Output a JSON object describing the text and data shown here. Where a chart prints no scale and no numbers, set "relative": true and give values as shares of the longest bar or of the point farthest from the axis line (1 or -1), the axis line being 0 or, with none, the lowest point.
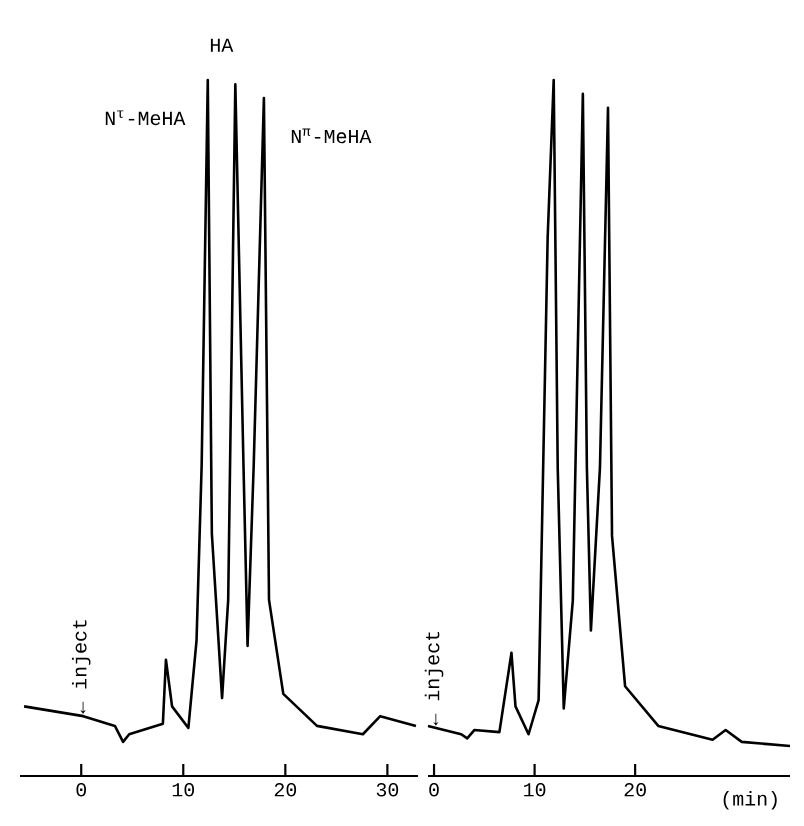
{
  "chart_data": [
    {
      "type": "line",
      "relative": true,
      "color": "#000000",
      "x": [
        -5.6,
        0.2,
        3.3,
        4.1,
        4.7,
        8.0,
        8.3,
        8.9,
        10.5,
        11.3,
        11.8,
        12.4,
        12.8,
        13.8,
        14.4,
        15.1,
        15.9,
        16.3,
        16.9,
        17.9,
        18.4,
        19.8,
        23.1,
        27.6,
        29.3,
        32.8
      ],
      "values": [
        0.1,
        0.086,
        0.072,
        0.049,
        0.06,
        0.075,
        0.167,
        0.1,
        0.069,
        0.195,
        0.446,
        1.0,
        0.348,
        0.112,
        0.253,
        0.994,
        0.446,
        0.187,
        0.446,
        0.974,
        0.253,
        0.118,
        0.072,
        0.06,
        0.086,
        0.072
      ],
      "xlim": [
        -6,
        33
      ],
      "xticks": [
        0,
        10,
        20,
        30
      ],
      "annotations": [
        {
          "text": "HA",
          "x": 15.1,
          "y": 0.994
        },
        {
          "text": "N$^{τ}$-MeHA",
          "x": 12.4,
          "y": 1.0
        },
        {
          "text": "N$^{π}$-MeHA",
          "x": 17.9,
          "y": 0.974
        },
        {
          "text": "← inject",
          "x": 0,
          "y": 0.086
        }
      ]
    },
    {
      "type": "line",
      "relative": true,
      "color": "#000000",
      "x": [
        -0.6,
        2.7,
        3.3,
        4.0,
        6.5,
        7.7,
        8.1,
        9.4,
        10.4,
        11.3,
        11.9,
        12.3,
        12.9,
        13.8,
        14.8,
        15.2,
        15.6,
        16.5,
        17.3,
        17.7,
        19.0,
        22.3,
        27.7,
        29.0,
        30.6,
        35.4
      ],
      "values": [
        0.072,
        0.06,
        0.054,
        0.066,
        0.063,
        0.177,
        0.1,
        0.06,
        0.109,
        0.774,
        1.0,
        0.443,
        0.097,
        0.252,
        0.98,
        0.443,
        0.209,
        0.443,
        0.96,
        0.345,
        0.129,
        0.072,
        0.052,
        0.066,
        0.049,
        0.043
      ],
      "xlim": [
        -0.6,
        35.4
      ],
      "xticks": [
        0,
        10,
        20
      ],
      "xlabel": "(min)",
      "annotations": [
        {
          "text": "← inject",
          "x": 0,
          "y": 0.069
        }
      ]
    }
  ]
}
